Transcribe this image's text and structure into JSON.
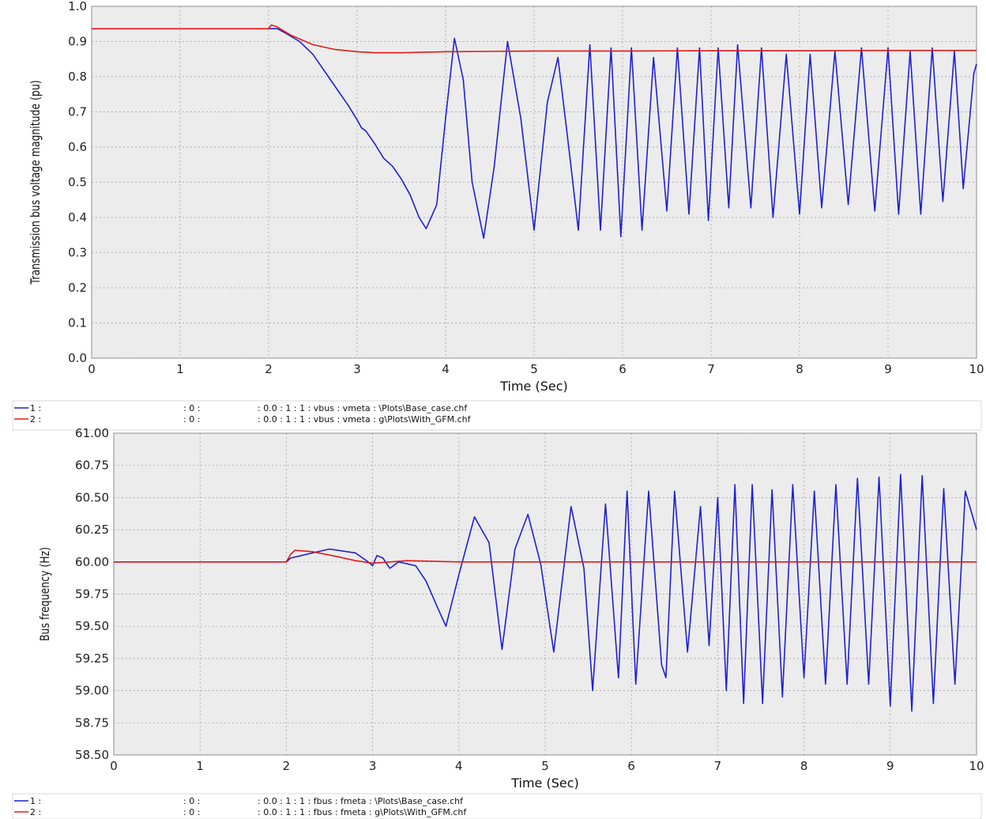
{
  "colors": {
    "plot_bg": "#ececec",
    "grid": "#9a9a9a",
    "blue": "#1f1fd6",
    "red": "#e01b1b",
    "legend_bg": "#ffffff"
  },
  "chart_data": [
    {
      "type": "line",
      "xlabel": "Time (Sec)",
      "ylabel": "Transmission bus voltage magnitude (pu)",
      "xlim": [
        0,
        10
      ],
      "ylim": [
        0,
        1.1
      ],
      "xticks": [
        "0",
        "1",
        "2",
        "3",
        "4",
        "5",
        "6",
        "7",
        "8",
        "9",
        "10"
      ],
      "yticks": [
        "0.0",
        "0.1",
        "0.2",
        "0.3",
        "0.4",
        "0.5",
        "0.6",
        "0.7",
        "0.8",
        "0.9",
        "1.0"
      ],
      "grid": true,
      "legend_position": "below",
      "legend": [
        {
          "index": "1 :",
          "mid": ": 0 :",
          "text": ": 0.0   : 1   : 1 : vbus : vmeta : \\Plots\\Base_case.chf"
        },
        {
          "index": "2 :",
          "mid": ": 0 :",
          "text": ": 0.0   : 1   : 1 : vbus : vmeta : g\\Plots\\With_GFM.chf"
        }
      ],
      "series": [
        {
          "color": "blue",
          "x": [
            0,
            2.0,
            2.1,
            2.2,
            2.35,
            2.5,
            2.7,
            2.9,
            3.0,
            3.05,
            3.1,
            3.2,
            3.3,
            3.4,
            3.5,
            3.6,
            3.7,
            3.78,
            3.9,
            4.0,
            4.1,
            4.2,
            4.3,
            4.43,
            4.55,
            4.7,
            4.85,
            5.0,
            5.15,
            5.27,
            5.4,
            5.5,
            5.63,
            5.75,
            5.87,
            5.98,
            6.1,
            6.22,
            6.35,
            6.5,
            6.62,
            6.75,
            6.87,
            6.97,
            7.08,
            7.2,
            7.3,
            7.45,
            7.57,
            7.7,
            7.85,
            8.0,
            8.12,
            8.25,
            8.4,
            8.55,
            8.7,
            8.85,
            9.0,
            9.12,
            9.25,
            9.37,
            9.5,
            9.62,
            9.75,
            9.85,
            9.97,
            10.0
          ],
          "y": [
            1.03,
            1.03,
            1.03,
            1.015,
            0.99,
            0.95,
            0.87,
            0.79,
            0.745,
            0.72,
            0.71,
            0.67,
            0.625,
            0.6,
            0.56,
            0.51,
            0.44,
            0.405,
            0.48,
            0.75,
            1.0,
            0.87,
            0.55,
            0.375,
            0.6,
            0.99,
            0.75,
            0.4,
            0.8,
            0.94,
            0.64,
            0.4,
            0.98,
            0.4,
            0.97,
            0.38,
            0.97,
            0.4,
            0.94,
            0.46,
            0.97,
            0.45,
            0.97,
            0.43,
            0.97,
            0.47,
            0.98,
            0.47,
            0.97,
            0.44,
            0.95,
            0.45,
            0.95,
            0.47,
            0.96,
            0.48,
            0.97,
            0.46,
            0.97,
            0.45,
            0.96,
            0.45,
            0.97,
            0.49,
            0.96,
            0.53,
            0.89,
            0.92
          ]
        },
        {
          "color": "red",
          "x": [
            0,
            2.0,
            2.03,
            2.1,
            2.25,
            2.5,
            2.75,
            3.0,
            3.2,
            3.5,
            4.0,
            5.0,
            6.0,
            7.0,
            8.0,
            9.0,
            10.0
          ],
          "y": [
            1.03,
            1.03,
            1.042,
            1.035,
            1.01,
            0.98,
            0.965,
            0.958,
            0.955,
            0.955,
            0.958,
            0.96,
            0.96,
            0.961,
            0.961,
            0.962,
            0.962
          ]
        }
      ]
    },
    {
      "type": "line",
      "xlabel": "Time (Sec)",
      "ylabel": "Bus frequency (Hz)",
      "xlim": [
        0,
        10
      ],
      "ylim": [
        58.5,
        61.0
      ],
      "xticks": [
        "0",
        "1",
        "2",
        "3",
        "4",
        "5",
        "6",
        "7",
        "8",
        "9",
        "10"
      ],
      "yticks": [
        "58.50",
        "58.75",
        "59.00",
        "59.25",
        "59.50",
        "59.75",
        "60.00",
        "60.25",
        "60.50",
        "60.75",
        "61.00"
      ],
      "grid": true,
      "legend_position": "below",
      "legend": [
        {
          "index": "1 :",
          "mid": ": 0 :",
          "text": ": 0.0   : 1   : 1 : fbus : fmeta : \\Plots\\Base_case.chf"
        },
        {
          "index": "2 :",
          "mid": ": 0 :",
          "text": ": 0.0   : 1   : 1 : fbus : fmeta : g\\Plots\\With_GFM.chf"
        }
      ],
      "series": [
        {
          "color": "blue",
          "x": [
            0,
            2.0,
            2.05,
            2.5,
            2.8,
            2.95,
            3.0,
            3.05,
            3.12,
            3.2,
            3.3,
            3.5,
            3.62,
            3.75,
            3.85,
            4.0,
            4.18,
            4.35,
            4.5,
            4.65,
            4.8,
            4.95,
            5.1,
            5.3,
            5.45,
            5.55,
            5.7,
            5.85,
            5.95,
            6.05,
            6.2,
            6.35,
            6.4,
            6.5,
            6.65,
            6.8,
            6.9,
            7.0,
            7.1,
            7.2,
            7.3,
            7.4,
            7.52,
            7.63,
            7.75,
            7.87,
            8.0,
            8.12,
            8.25,
            8.37,
            8.5,
            8.62,
            8.75,
            8.87,
            9.0,
            9.12,
            9.25,
            9.37,
            9.5,
            9.62,
            9.75,
            9.87,
            10.0
          ],
          "y": [
            60.0,
            60.0,
            60.03,
            60.1,
            60.07,
            60.0,
            59.97,
            60.05,
            60.03,
            59.95,
            60.0,
            59.97,
            59.85,
            59.65,
            59.5,
            59.9,
            60.35,
            60.15,
            59.32,
            60.1,
            60.37,
            59.98,
            59.3,
            60.43,
            59.95,
            59.0,
            60.45,
            59.1,
            60.55,
            59.05,
            60.55,
            59.2,
            59.1,
            60.55,
            59.3,
            60.43,
            59.35,
            60.5,
            59.0,
            60.6,
            58.9,
            60.6,
            58.9,
            60.56,
            58.95,
            60.6,
            59.1,
            60.55,
            59.05,
            60.6,
            59.05,
            60.65,
            59.05,
            60.66,
            58.88,
            60.68,
            58.84,
            60.67,
            58.9,
            60.57,
            59.05,
            60.55,
            60.25
          ]
        },
        {
          "color": "red",
          "x": [
            0,
            2.0,
            2.05,
            2.1,
            2.3,
            2.6,
            2.8,
            3.0,
            3.4,
            4.0,
            5.0,
            6.0,
            7.0,
            8.0,
            9.0,
            10.0
          ],
          "y": [
            60.0,
            60.0,
            60.06,
            60.09,
            60.08,
            60.04,
            60.01,
            59.99,
            60.01,
            60.0,
            60.0,
            60.0,
            60.0,
            60.0,
            60.0,
            60.0
          ]
        }
      ]
    }
  ]
}
